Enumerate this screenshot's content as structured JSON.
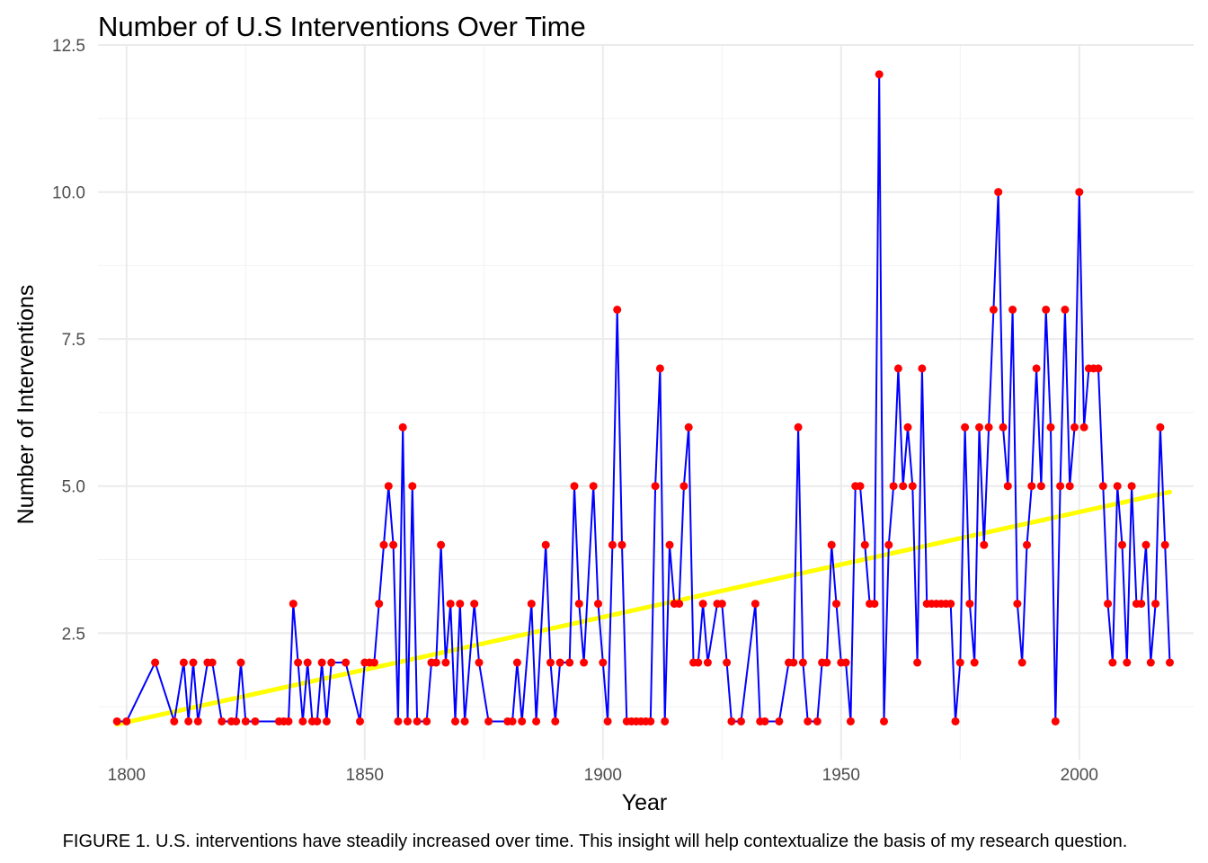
{
  "caption": "FIGURE 1. U.S. interventions have steadily increased over time. This insight will help contextualize the basis of my research question.",
  "chart_data": {
    "type": "line",
    "title": "Number of U.S Interventions Over Time",
    "xlabel": "Year",
    "ylabel": "Number of Interventions",
    "xlim": [
      1794,
      2024
    ],
    "ylim": [
      0.35,
      12.5
    ],
    "x_ticks": [
      1800,
      1850,
      1900,
      1950,
      2000
    ],
    "y_ticks": [
      2.5,
      5.0,
      7.5,
      10.0,
      12.5
    ],
    "y_tick_labels": [
      "2.5",
      "5.0",
      "7.5",
      "10.0",
      "12.5"
    ],
    "grid": true,
    "line_color": "#0000FF",
    "point_color": "#FF0000",
    "trend_color": "#FFFF00",
    "trend": {
      "x": [
        1798,
        2019
      ],
      "y": [
        0.95,
        4.9
      ]
    },
    "series": [
      {
        "x": [
          1798,
          1800,
          1806,
          1810,
          1812,
          1813,
          1814,
          1815,
          1817,
          1818,
          1820,
          1822,
          1823,
          1824,
          1825,
          1827,
          1832,
          1833,
          1834,
          1835,
          1836,
          1837,
          1838,
          1839,
          1840,
          1841,
          1842,
          1843,
          1846,
          1849,
          1850,
          1851,
          1852,
          1853,
          1854,
          1855,
          1856,
          1857,
          1858,
          1859,
          1860,
          1861,
          1863,
          1864,
          1865,
          1866,
          1867,
          1868,
          1869,
          1870,
          1871,
          1873,
          1874,
          1876,
          1880,
          1881,
          1882,
          1883,
          1885,
          1886,
          1888,
          1889,
          1890,
          1891,
          1893,
          1894,
          1895,
          1896,
          1898,
          1899,
          1900,
          1901,
          1902,
          1903,
          1904,
          1905,
          1906,
          1907,
          1908,
          1909,
          1910,
          1911,
          1912,
          1913,
          1914,
          1915,
          1916,
          1917,
          1918,
          1919,
          1920,
          1921,
          1922,
          1924,
          1925,
          1926,
          1927,
          1929,
          1932,
          1933,
          1934,
          1937,
          1939,
          1940,
          1941,
          1942,
          1943,
          1945,
          1946,
          1947,
          1948,
          1949,
          1950,
          1951,
          1952,
          1953,
          1954,
          1955,
          1956,
          1957,
          1958,
          1959,
          1960,
          1961,
          1962,
          1963,
          1964,
          1965,
          1966,
          1967,
          1968,
          1969,
          1970,
          1971,
          1972,
          1973,
          1974,
          1975,
          1976,
          1977,
          1978,
          1979,
          1980,
          1981,
          1982,
          1983,
          1984,
          1985,
          1986,
          1987,
          1988,
          1989,
          1990,
          1991,
          1992,
          1993,
          1994,
          1995,
          1996,
          1997,
          1998,
          1999,
          2000,
          2001,
          2002,
          2003,
          2004,
          2005,
          2006,
          2007,
          2008,
          2009,
          2010,
          2011,
          2012,
          2013,
          2014,
          2015,
          2016,
          2017,
          2018,
          2019
        ],
        "values": [
          1,
          1,
          2,
          1,
          2,
          1,
          2,
          1,
          2,
          2,
          1,
          1,
          1,
          2,
          1,
          1,
          1,
          1,
          1,
          3,
          2,
          1,
          2,
          1,
          1,
          2,
          1,
          2,
          2,
          1,
          2,
          2,
          2,
          3,
          4,
          5,
          4,
          1,
          6,
          1,
          5,
          1,
          1,
          2,
          2,
          4,
          2,
          3,
          1,
          3,
          1,
          3,
          2,
          1,
          1,
          1,
          2,
          1,
          3,
          1,
          4,
          2,
          1,
          2,
          2,
          5,
          3,
          2,
          5,
          3,
          2,
          1,
          4,
          8,
          4,
          1,
          1,
          1,
          1,
          1,
          1,
          5,
          7,
          1,
          4,
          3,
          3,
          5,
          6,
          2,
          2,
          3,
          2,
          3,
          3,
          2,
          1,
          1,
          3,
          1,
          1,
          1,
          2,
          2,
          6,
          2,
          1,
          1,
          2,
          2,
          4,
          3,
          2,
          2,
          1,
          5,
          5,
          4,
          3,
          3,
          12,
          1,
          4,
          5,
          7,
          5,
          6,
          5,
          2,
          7,
          3,
          3,
          3,
          3,
          3,
          3,
          1,
          2,
          6,
          3,
          2,
          6,
          4,
          6,
          8,
          10,
          6,
          5,
          8,
          3,
          2,
          4,
          5,
          7,
          5,
          8,
          6,
          1,
          5,
          8,
          5,
          6,
          10,
          6,
          7,
          7,
          7,
          5,
          3,
          2,
          5,
          4,
          2,
          5,
          3,
          3,
          4,
          2,
          3,
          6,
          4,
          2
        ]
      }
    ]
  }
}
